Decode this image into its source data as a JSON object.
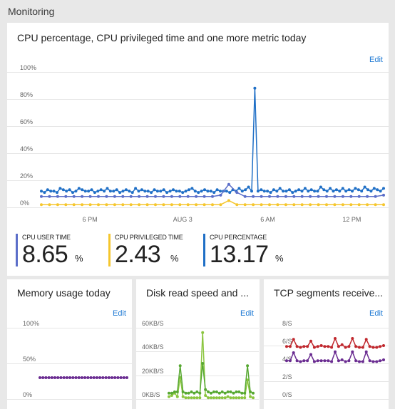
{
  "header": {
    "title": "Monitoring"
  },
  "cpu_tile": {
    "title": "CPU percentage, CPU privileged time and one more metric today",
    "edit_label": "Edit",
    "metrics": [
      {
        "label": "CPU USER TIME",
        "value": "8.65",
        "unit": "%",
        "color": "#5b6ec9"
      },
      {
        "label": "CPU PRIVILEGED TIME",
        "value": "2.43",
        "unit": "%",
        "color": "#f5c62d"
      },
      {
        "label": "CPU PERCENTAGE",
        "value": "13.17",
        "unit": "%",
        "color": "#1f6fc6"
      }
    ]
  },
  "memory_tile": {
    "title": "Memory usage today",
    "edit_label": "Edit"
  },
  "disk_tile": {
    "title": "Disk read speed and ...",
    "edit_label": "Edit"
  },
  "tcp_tile": {
    "title": "TCP segments receive...",
    "edit_label": "Edit"
  },
  "chart_data": [
    {
      "type": "line",
      "y_tick_labels": [
        "0%",
        "20%",
        "40%",
        "60%",
        "80%",
        "100%"
      ],
      "ylim": [
        0,
        100
      ],
      "x_tick_labels": [
        "6 PM",
        "AUG 3",
        "6 AM",
        "12 PM"
      ],
      "series": [
        {
          "name": "CPU PERCENTAGE",
          "color": "#1f6fc6",
          "values": [
            12,
            11,
            13,
            12,
            12,
            11,
            14,
            13,
            12,
            13,
            11,
            12,
            14,
            13,
            12,
            12,
            13,
            11,
            12,
            13,
            12,
            14,
            12,
            12,
            13,
            11,
            12,
            13,
            12,
            11,
            14,
            12,
            13,
            12,
            12,
            11,
            13,
            12,
            12,
            13,
            11,
            12,
            13,
            12,
            12,
            11,
            12,
            13,
            14,
            12,
            11,
            12,
            13,
            12,
            12,
            11,
            13,
            12,
            12,
            12,
            11,
            13,
            12,
            14,
            12,
            13,
            15,
            12,
            88,
            12,
            13,
            12,
            12,
            11,
            13,
            12,
            14,
            12,
            12,
            13,
            11,
            12,
            13,
            12,
            14,
            12,
            13,
            12,
            12,
            15,
            13,
            12,
            14,
            12,
            13,
            12,
            14,
            12,
            13,
            12,
            14,
            13,
            12,
            15,
            13,
            12,
            14,
            13,
            12,
            14
          ]
        },
        {
          "name": "CPU USER TIME",
          "color": "#5b6ec9",
          "values": [
            8,
            8,
            8,
            8,
            8,
            8,
            8,
            8,
            8,
            8,
            8,
            8,
            8,
            8,
            8,
            8,
            8,
            8,
            8,
            8,
            8,
            8,
            9,
            17,
            11,
            8,
            8,
            8,
            8,
            8,
            8,
            8,
            8,
            8,
            8,
            8,
            8,
            8,
            8,
            8,
            8,
            8,
            9
          ]
        },
        {
          "name": "CPU PRIVILEGED TIME",
          "color": "#f5c62d",
          "values": [
            2,
            2,
            2,
            2,
            2,
            2,
            2,
            2,
            2,
            2,
            2,
            2,
            2,
            2,
            2,
            2,
            2,
            2,
            2,
            2,
            2,
            2,
            2,
            5,
            2,
            2,
            2,
            2,
            2,
            2,
            2,
            2,
            2,
            2,
            2,
            2,
            2,
            2,
            2,
            2,
            2,
            2,
            2
          ]
        }
      ]
    },
    {
      "type": "line",
      "y_tick_labels": [
        "0%",
        "50%",
        "100%"
      ],
      "ylim": [
        0,
        100
      ],
      "series": [
        {
          "color": "#6a2c91",
          "values": [
            30,
            30,
            30,
            30,
            30,
            30,
            30,
            30,
            30,
            30,
            30,
            30,
            30,
            30,
            30,
            30,
            30,
            30,
            30,
            30,
            30,
            30,
            30,
            30,
            30,
            30,
            30,
            30,
            30,
            30
          ]
        }
      ]
    },
    {
      "type": "line",
      "y_tick_labels": [
        "0KB/S",
        "20KB/S",
        "40KB/S",
        "60KB/S"
      ],
      "ylim": [
        0,
        60
      ],
      "series": [
        {
          "color": "#8bc53f",
          "values": [
            2,
            3,
            5,
            2,
            18,
            2,
            1,
            1,
            1,
            1,
            1,
            1,
            56,
            3,
            1,
            1,
            1,
            1,
            1,
            1,
            1,
            2,
            1,
            1,
            1,
            1,
            1,
            1,
            16,
            2,
            1
          ]
        },
        {
          "color": "#57a832",
          "values": [
            5,
            5,
            6,
            6,
            28,
            6,
            5,
            5,
            6,
            5,
            6,
            5,
            30,
            8,
            6,
            5,
            6,
            6,
            5,
            6,
            5,
            6,
            6,
            5,
            6,
            6,
            5,
            5,
            28,
            6,
            5
          ]
        }
      ]
    },
    {
      "type": "line",
      "y_tick_labels": [
        "0/S",
        "2/S",
        "4/S",
        "6/S",
        "8/S"
      ],
      "ylim": [
        0,
        8
      ],
      "series": [
        {
          "color": "#c0272d",
          "values": [
            5.9,
            5.9,
            6.7,
            5.9,
            5.8,
            5.9,
            5.9,
            6.5,
            5.8,
            5.9,
            6.0,
            5.9,
            5.9,
            5.8,
            6.8,
            5.9,
            6.1,
            5.8,
            5.9,
            6.8,
            5.9,
            5.8,
            5.8,
            6.7,
            5.9,
            5.8,
            5.8,
            5.9,
            6.0
          ]
        },
        {
          "color": "#6a2c91",
          "values": [
            4.3,
            4.3,
            5.2,
            4.3,
            4.2,
            4.3,
            4.3,
            5.0,
            4.2,
            4.3,
            4.3,
            4.3,
            4.3,
            4.2,
            5.3,
            4.3,
            4.4,
            4.2,
            4.3,
            5.3,
            4.3,
            4.2,
            4.2,
            5.3,
            4.3,
            4.2,
            4.2,
            4.3,
            4.4
          ]
        }
      ]
    }
  ]
}
